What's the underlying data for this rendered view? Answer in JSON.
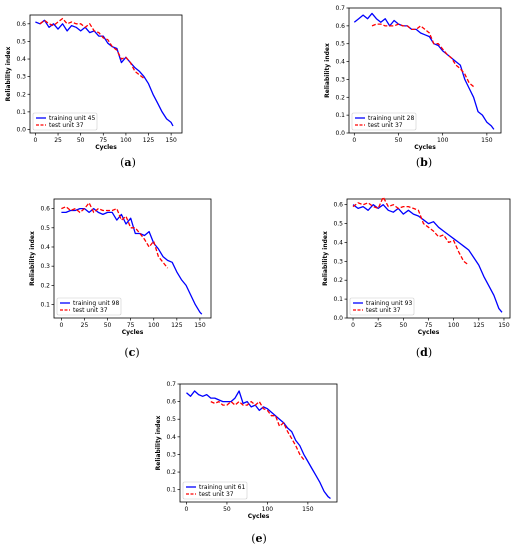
{
  "chart_data": [
    {
      "type": "line",
      "caption": "a",
      "xlabel": "Cycles",
      "ylabel": "Reliability index",
      "xlim": [
        -6,
        162
      ],
      "ylim": [
        -0.02,
        0.65
      ],
      "xticks": [
        0,
        25,
        50,
        75,
        100,
        125,
        150
      ],
      "yticks": [
        0.0,
        0.1,
        0.2,
        0.3,
        0.4,
        0.5,
        0.6
      ],
      "ytick_labels": [
        "0.0",
        "0.1",
        "0.2",
        "0.3",
        "0.4",
        "0.5",
        "0.6"
      ],
      "legend_position": "bottom-left",
      "series": [
        {
          "name": "training unit 45",
          "color": "#0000ff",
          "style": "solid",
          "x": [
            0,
            5,
            10,
            15,
            20,
            25,
            30,
            35,
            40,
            45,
            50,
            55,
            60,
            65,
            70,
            75,
            80,
            85,
            90,
            95,
            100,
            105,
            110,
            115,
            120,
            125,
            130,
            135,
            140,
            145,
            150,
            152
          ],
          "y": [
            0.61,
            0.6,
            0.62,
            0.58,
            0.6,
            0.57,
            0.6,
            0.56,
            0.59,
            0.58,
            0.56,
            0.58,
            0.55,
            0.56,
            0.53,
            0.53,
            0.49,
            0.47,
            0.46,
            0.38,
            0.41,
            0.38,
            0.35,
            0.33,
            0.3,
            0.26,
            0.2,
            0.15,
            0.1,
            0.06,
            0.04,
            0.02
          ]
        },
        {
          "name": "test unit 37",
          "color": "#ff0000",
          "style": "dashed",
          "x": [
            5,
            10,
            15,
            20,
            25,
            30,
            35,
            40,
            45,
            50,
            55,
            60,
            65,
            70,
            75,
            80,
            85,
            90,
            95,
            100,
            105,
            110,
            115,
            120
          ],
          "y": [
            0.6,
            0.62,
            0.6,
            0.59,
            0.61,
            0.63,
            0.6,
            0.61,
            0.6,
            0.6,
            0.58,
            0.6,
            0.56,
            0.55,
            0.52,
            0.51,
            0.47,
            0.45,
            0.4,
            0.41,
            0.38,
            0.33,
            0.31,
            0.29
          ]
        }
      ]
    },
    {
      "type": "line",
      "caption": "b",
      "xlabel": "Cycles",
      "ylabel": "Reliability index",
      "xlim": [
        -6,
        166
      ],
      "ylim": [
        0.0,
        0.7
      ],
      "xticks": [
        0,
        50,
        100,
        150
      ],
      "yticks": [
        0.0,
        0.1,
        0.2,
        0.3,
        0.4,
        0.5,
        0.6,
        0.7
      ],
      "ytick_labels": [
        "0.0",
        "0.1",
        "0.2",
        "0.3",
        "0.4",
        "0.5",
        "0.6",
        "0.7"
      ],
      "legend_position": "bottom-left",
      "series": [
        {
          "name": "training unit 28",
          "color": "#0000ff",
          "style": "solid",
          "x": [
            0,
            5,
            10,
            15,
            20,
            25,
            30,
            35,
            40,
            45,
            50,
            55,
            60,
            65,
            70,
            75,
            80,
            85,
            90,
            95,
            100,
            105,
            110,
            115,
            120,
            125,
            130,
            135,
            140,
            145,
            150,
            155,
            158
          ],
          "y": [
            0.62,
            0.64,
            0.66,
            0.64,
            0.67,
            0.64,
            0.62,
            0.64,
            0.6,
            0.63,
            0.61,
            0.6,
            0.6,
            0.58,
            0.58,
            0.56,
            0.55,
            0.54,
            0.5,
            0.49,
            0.46,
            0.44,
            0.42,
            0.4,
            0.38,
            0.3,
            0.25,
            0.2,
            0.12,
            0.1,
            0.06,
            0.04,
            0.02
          ]
        },
        {
          "name": "test unit 37",
          "color": "#ff0000",
          "style": "dashed",
          "x": [
            20,
            25,
            30,
            35,
            40,
            45,
            50,
            55,
            60,
            65,
            70,
            75,
            80,
            85,
            90,
            95,
            100,
            105,
            110,
            115,
            120,
            125,
            130,
            135
          ],
          "y": [
            0.6,
            0.61,
            0.61,
            0.6,
            0.6,
            0.6,
            0.61,
            0.6,
            0.6,
            0.58,
            0.58,
            0.6,
            0.58,
            0.56,
            0.5,
            0.5,
            0.47,
            0.44,
            0.42,
            0.38,
            0.36,
            0.33,
            0.28,
            0.26
          ]
        }
      ]
    },
    {
      "type": "line",
      "caption": "c",
      "xlabel": "Cycles",
      "ylabel": "Reliability index",
      "xlim": [
        -8,
        162
      ],
      "ylim": [
        0.03,
        0.65
      ],
      "xticks": [
        0,
        25,
        50,
        75,
        100,
        125,
        150
      ],
      "yticks": [
        0.1,
        0.2,
        0.3,
        0.4,
        0.5,
        0.6
      ],
      "ytick_labels": [
        "0.1",
        "0.2",
        "0.3",
        "0.4",
        "0.5",
        "0.6"
      ],
      "legend_position": "bottom-left",
      "series": [
        {
          "name": "training unit 98",
          "color": "#0000ff",
          "style": "solid",
          "x": [
            0,
            5,
            10,
            15,
            20,
            25,
            30,
            35,
            40,
            45,
            50,
            55,
            60,
            65,
            70,
            75,
            80,
            85,
            90,
            95,
            100,
            105,
            110,
            115,
            120,
            125,
            130,
            135,
            140,
            145,
            150,
            152
          ],
          "y": [
            0.58,
            0.58,
            0.59,
            0.59,
            0.6,
            0.6,
            0.58,
            0.6,
            0.58,
            0.57,
            0.58,
            0.58,
            0.54,
            0.57,
            0.52,
            0.55,
            0.47,
            0.47,
            0.46,
            0.48,
            0.42,
            0.39,
            0.35,
            0.33,
            0.32,
            0.27,
            0.23,
            0.2,
            0.15,
            0.1,
            0.06,
            0.05
          ]
        },
        {
          "name": "test unit 37",
          "color": "#ff0000",
          "style": "dashed",
          "x": [
            0,
            5,
            10,
            15,
            20,
            25,
            30,
            35,
            40,
            45,
            50,
            55,
            60,
            65,
            70,
            75,
            80,
            85,
            90,
            95,
            100,
            105,
            110,
            115
          ],
          "y": [
            0.6,
            0.61,
            0.59,
            0.6,
            0.58,
            0.6,
            0.63,
            0.58,
            0.6,
            0.59,
            0.59,
            0.59,
            0.6,
            0.54,
            0.56,
            0.5,
            0.5,
            0.47,
            0.44,
            0.4,
            0.43,
            0.35,
            0.32,
            0.29
          ]
        }
      ]
    },
    {
      "type": "line",
      "caption": "d",
      "xlabel": "Cycles",
      "ylabel": "Reliability index",
      "xlim": [
        -6,
        156
      ],
      "ylim": [
        0.0,
        0.63
      ],
      "xticks": [
        0,
        25,
        50,
        75,
        100,
        125,
        150
      ],
      "yticks": [
        0.0,
        0.1,
        0.2,
        0.3,
        0.4,
        0.5,
        0.6
      ],
      "ytick_labels": [
        "0.0",
        "0.1",
        "0.2",
        "0.3",
        "0.4",
        "0.5",
        "0.6"
      ],
      "legend_position": "bottom-left",
      "series": [
        {
          "name": "training unit 93",
          "color": "#0000ff",
          "style": "solid",
          "x": [
            0,
            5,
            10,
            15,
            20,
            25,
            30,
            35,
            40,
            45,
            50,
            55,
            60,
            65,
            70,
            75,
            80,
            85,
            90,
            95,
            100,
            105,
            110,
            115,
            120,
            125,
            130,
            135,
            140,
            145,
            148
          ],
          "y": [
            0.6,
            0.58,
            0.59,
            0.57,
            0.6,
            0.58,
            0.6,
            0.57,
            0.56,
            0.58,
            0.55,
            0.57,
            0.55,
            0.54,
            0.52,
            0.5,
            0.51,
            0.48,
            0.46,
            0.44,
            0.42,
            0.4,
            0.38,
            0.36,
            0.32,
            0.28,
            0.22,
            0.17,
            0.12,
            0.05,
            0.03
          ]
        },
        {
          "name": "test unit 37",
          "color": "#ff0000",
          "style": "dashed",
          "x": [
            0,
            5,
            10,
            15,
            20,
            25,
            30,
            35,
            40,
            45,
            50,
            55,
            60,
            65,
            70,
            75,
            80,
            85,
            90,
            95,
            100,
            105,
            110,
            115
          ],
          "y": [
            0.59,
            0.61,
            0.6,
            0.61,
            0.59,
            0.58,
            0.64,
            0.59,
            0.6,
            0.58,
            0.59,
            0.59,
            0.58,
            0.57,
            0.5,
            0.48,
            0.46,
            0.43,
            0.44,
            0.4,
            0.41,
            0.35,
            0.3,
            0.28
          ]
        }
      ]
    },
    {
      "type": "line",
      "caption": "e",
      "xlabel": "Cycles",
      "ylabel": "Reliability index",
      "xlim": [
        -8,
        186
      ],
      "ylim": [
        0.03,
        0.7
      ],
      "xticks": [
        0,
        50,
        100,
        150
      ],
      "yticks": [
        0.1,
        0.2,
        0.3,
        0.4,
        0.5,
        0.6,
        0.7
      ],
      "ytick_labels": [
        "0.1",
        "0.2",
        "0.3",
        "0.4",
        "0.5",
        "0.6",
        "0.7"
      ],
      "legend_position": "bottom-left",
      "series": [
        {
          "name": "training unit 61",
          "color": "#0000ff",
          "style": "solid",
          "x": [
            0,
            5,
            10,
            15,
            20,
            25,
            30,
            35,
            40,
            45,
            50,
            55,
            60,
            65,
            70,
            75,
            80,
            85,
            90,
            95,
            100,
            105,
            110,
            115,
            120,
            125,
            130,
            135,
            140,
            145,
            150,
            155,
            160,
            165,
            170,
            175,
            178
          ],
          "y": [
            0.65,
            0.63,
            0.66,
            0.64,
            0.63,
            0.64,
            0.62,
            0.62,
            0.61,
            0.6,
            0.6,
            0.6,
            0.62,
            0.66,
            0.59,
            0.6,
            0.57,
            0.58,
            0.55,
            0.57,
            0.56,
            0.54,
            0.52,
            0.5,
            0.48,
            0.45,
            0.43,
            0.38,
            0.35,
            0.3,
            0.26,
            0.22,
            0.18,
            0.14,
            0.09,
            0.06,
            0.05
          ]
        },
        {
          "name": "test unit 37",
          "color": "#ff0000",
          "style": "dashed",
          "x": [
            30,
            35,
            40,
            45,
            50,
            55,
            60,
            65,
            70,
            75,
            80,
            85,
            90,
            95,
            100,
            105,
            110,
            115,
            120,
            125,
            130,
            135,
            140,
            145
          ],
          "y": [
            0.6,
            0.59,
            0.6,
            0.58,
            0.58,
            0.6,
            0.58,
            0.6,
            0.58,
            0.58,
            0.6,
            0.58,
            0.6,
            0.56,
            0.55,
            0.52,
            0.52,
            0.46,
            0.48,
            0.43,
            0.39,
            0.35,
            0.3,
            0.27
          ]
        }
      ]
    }
  ]
}
